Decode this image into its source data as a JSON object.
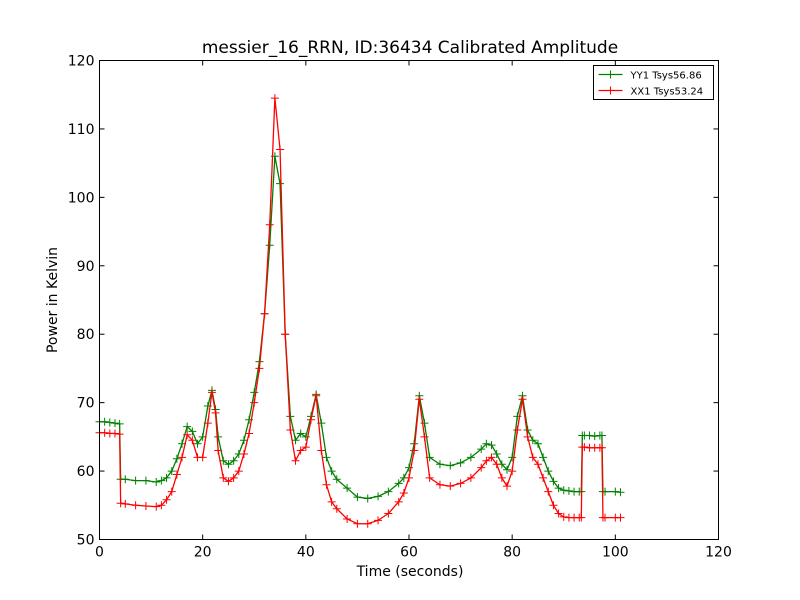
{
  "chart_data": {
    "type": "line",
    "title": "messier_16_RRN, ID:36434 Calibrated Amplitude",
    "xlabel": "Time (seconds)",
    "ylabel": "Power in Kelvin",
    "xlim": [
      0,
      120
    ],
    "ylim": [
      50,
      120
    ],
    "xticks": [
      "0",
      "20",
      "40",
      "60",
      "80",
      "100",
      "120"
    ],
    "yticks": [
      "50",
      "60",
      "70",
      "80",
      "90",
      "100",
      "110",
      "120"
    ],
    "grid": false,
    "legend_position": "top-right",
    "marker": "+",
    "series": [
      {
        "name": "YY1 Tsys56.86",
        "color": "#008000",
        "x": [
          0,
          1,
          2,
          3,
          3.9,
          4.1,
          5,
          7,
          9,
          11,
          12,
          13,
          14,
          15,
          16,
          17,
          18,
          19,
          20,
          21,
          21.8,
          22.5,
          23,
          24,
          25,
          26,
          27,
          28,
          29,
          30,
          31,
          32,
          33,
          34,
          35,
          36,
          37,
          38,
          39,
          40,
          41,
          42,
          43,
          44,
          45,
          46,
          48,
          50,
          52,
          54,
          56,
          58,
          59,
          60,
          61,
          62,
          63,
          64,
          66,
          68,
          70,
          72,
          74,
          75,
          76,
          77,
          78,
          79,
          80,
          81,
          82,
          83,
          84,
          85,
          86,
          87,
          88,
          89,
          90,
          91,
          92,
          93,
          93.4,
          93.6,
          94,
          95,
          96,
          97,
          97.4,
          97.6,
          98,
          100,
          101
        ],
        "y": [
          67.2,
          67.2,
          67.1,
          67.0,
          66.9,
          58.8,
          58.8,
          58.6,
          58.6,
          58.4,
          58.6,
          59.0,
          60.0,
          61.8,
          64.0,
          66.5,
          65.8,
          64.0,
          65.0,
          69.5,
          71.8,
          69.0,
          65.0,
          61.5,
          61.0,
          61.5,
          62.5,
          64.5,
          67.5,
          71.5,
          76.0,
          83.0,
          93.0,
          106.0,
          102.0,
          80.0,
          68.0,
          64.5,
          65.5,
          65.0,
          68.0,
          71.2,
          67.0,
          62.0,
          60.0,
          58.8,
          57.5,
          56.2,
          56.0,
          56.3,
          57.0,
          58.2,
          59.0,
          60.5,
          64.0,
          71.0,
          67.0,
          62.0,
          61.0,
          60.8,
          61.2,
          62.0,
          63.2,
          64.0,
          63.8,
          62.5,
          61.0,
          60.2,
          62.0,
          68.0,
          71.0,
          66.0,
          64.5,
          64.0,
          62.0,
          60.0,
          58.5,
          57.5,
          57.2,
          57.1,
          57.0,
          57.0,
          57.0,
          65.2,
          65.2,
          65.2,
          65.1,
          65.2,
          65.2,
          57.0,
          57.0,
          57.0,
          56.9
        ]
      },
      {
        "name": "XX1 Tsys53.24",
        "color": "#ff0000",
        "x": [
          0,
          1,
          2,
          3,
          3.9,
          4.1,
          5,
          7,
          9,
          11,
          12,
          13,
          14,
          15,
          16,
          17,
          18,
          19,
          20,
          21,
          21.8,
          22.5,
          23,
          24,
          25,
          26,
          27,
          28,
          29,
          30,
          31,
          32,
          33,
          34,
          35,
          36,
          37,
          38,
          39,
          40,
          41,
          42,
          43,
          44,
          45,
          46,
          48,
          50,
          52,
          54,
          56,
          58,
          59,
          60,
          61,
          62,
          63,
          64,
          66,
          68,
          70,
          72,
          74,
          75,
          76,
          77,
          78,
          79,
          80,
          81,
          82,
          83,
          84,
          85,
          86,
          87,
          88,
          89,
          90,
          91,
          92,
          93,
          93.4,
          93.6,
          94,
          95,
          96,
          97,
          97.4,
          97.6,
          98,
          100,
          101
        ],
        "y": [
          65.6,
          65.6,
          65.5,
          65.5,
          65.4,
          55.3,
          55.2,
          55.0,
          54.9,
          54.8,
          55.0,
          55.8,
          57.0,
          59.5,
          62.0,
          65.3,
          64.5,
          62.0,
          62.0,
          67.0,
          71.5,
          68.5,
          63.0,
          59.0,
          58.5,
          59.0,
          60.0,
          62.5,
          65.5,
          70.0,
          75.0,
          83.0,
          96.0,
          114.5,
          107.0,
          80.0,
          66.0,
          61.5,
          63.0,
          63.5,
          67.5,
          71.0,
          63.0,
          58.0,
          55.5,
          54.5,
          53.0,
          52.3,
          52.3,
          52.8,
          53.8,
          55.5,
          56.8,
          59.0,
          63.0,
          70.5,
          65.0,
          59.0,
          58.0,
          57.8,
          58.2,
          59.0,
          60.5,
          61.5,
          62.0,
          61.0,
          59.0,
          57.8,
          60.0,
          66.0,
          70.5,
          65.0,
          62.0,
          61.0,
          59.0,
          57.0,
          55.0,
          53.8,
          53.3,
          53.2,
          53.2,
          53.2,
          53.2,
          63.5,
          63.5,
          63.4,
          63.4,
          63.4,
          63.4,
          53.2,
          53.2,
          53.2,
          53.2
        ]
      }
    ]
  }
}
